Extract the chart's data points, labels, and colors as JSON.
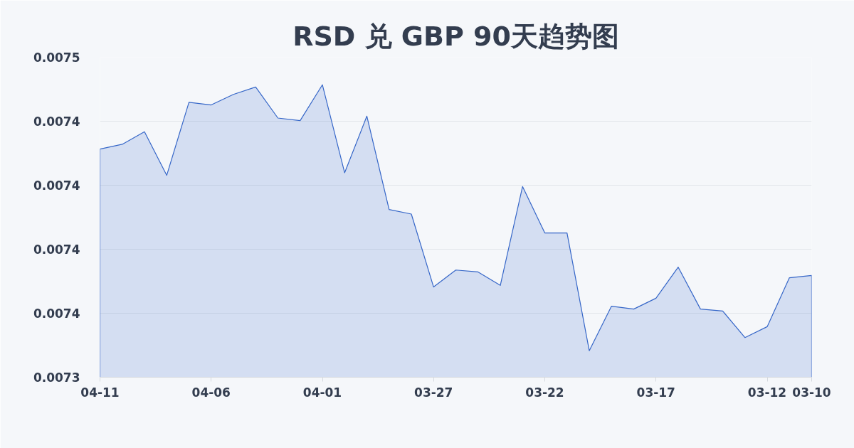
{
  "chart_data": {
    "type": "area",
    "title": "RSD 兑 GBP 90天趋势图",
    "categories": [
      "04-11",
      null,
      null,
      null,
      null,
      "04-06",
      null,
      null,
      null,
      null,
      "04-01",
      null,
      null,
      null,
      null,
      "03-27",
      null,
      null,
      null,
      null,
      "03-22",
      null,
      null,
      null,
      null,
      "03-17",
      null,
      null,
      null,
      null,
      "03-12",
      null,
      "03-10"
    ],
    "series": [
      {
        "color": "#3566c8",
        "values": [
          0.0074213,
          0.0074228,
          0.0074267,
          0.0074131,
          0.0074359,
          0.0074351,
          0.0074384,
          0.0074407,
          0.007431,
          0.0074302,
          0.0074414,
          0.0074139,
          0.0074316,
          0.0074024,
          0.007401,
          0.0073782,
          0.0073835,
          0.0073829,
          0.0073787,
          0.0074096,
          0.0073951,
          0.0073951,
          0.0073583,
          0.0073722,
          0.0073713,
          0.0073747,
          0.0073844,
          0.0073713,
          0.0073707,
          0.0073624,
          0.0073658,
          0.0073811,
          0.0073818
        ]
      }
    ],
    "ylim": [
      0.00735,
      0.00745
    ],
    "yticks": [
      {
        "value": 0.00735,
        "label": "0.0073"
      },
      {
        "value": 0.00737,
        "label": "0.0074"
      },
      {
        "value": 0.00739,
        "label": "0.0074"
      },
      {
        "value": 0.00741,
        "label": "0.0074"
      },
      {
        "value": 0.00743,
        "label": "0.0074"
      },
      {
        "value": 0.00745,
        "label": "0.0075"
      }
    ],
    "grid": "y"
  }
}
